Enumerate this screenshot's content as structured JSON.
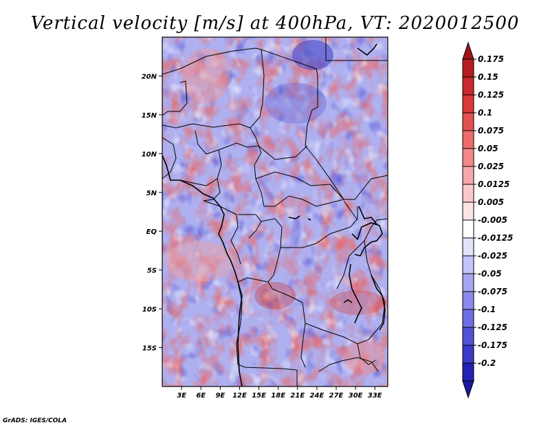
{
  "title": "Vertical velocity [m/s] at 400hPa, VT: 2020012500",
  "credit": "GrADS: IGES/COLA",
  "map": {
    "lon_range": [
      0,
      35
    ],
    "lat_range": [
      -20,
      25
    ],
    "lon_ticks": [
      {
        "value": 3,
        "label": "3E"
      },
      {
        "value": 6,
        "label": "6E"
      },
      {
        "value": 9,
        "label": "9E"
      },
      {
        "value": 12,
        "label": "12E"
      },
      {
        "value": 15,
        "label": "15E"
      },
      {
        "value": 18,
        "label": "18E"
      },
      {
        "value": 21,
        "label": "21E"
      },
      {
        "value": 24,
        "label": "24E"
      },
      {
        "value": 27,
        "label": "27E"
      },
      {
        "value": 30,
        "label": "30E"
      },
      {
        "value": 33,
        "label": "33E"
      }
    ],
    "lat_ticks": [
      {
        "value": 20,
        "label": "20N"
      },
      {
        "value": 15,
        "label": "15N"
      },
      {
        "value": 10,
        "label": "10N"
      },
      {
        "value": 5,
        "label": "5N"
      },
      {
        "value": 0,
        "label": "EQ"
      },
      {
        "value": -5,
        "label": "5S"
      },
      {
        "value": -10,
        "label": "10S"
      },
      {
        "value": -15,
        "label": "15S"
      }
    ]
  },
  "colorbar": {
    "levels": [
      {
        "label": "0.175",
        "color": "#b41c22"
      },
      {
        "label": "0.15",
        "color": "#c8282e"
      },
      {
        "label": "0.125",
        "color": "#d83838"
      },
      {
        "label": "0.1",
        "color": "#e45050"
      },
      {
        "label": "0.075",
        "color": "#ec6c6c"
      },
      {
        "label": "0.05",
        "color": "#f28888"
      },
      {
        "label": "0.025",
        "color": "#f6a8a8"
      },
      {
        "label": "0.0125",
        "color": "#fac8c8"
      },
      {
        "label": "0.005",
        "color": "#fce4e4"
      },
      {
        "label": "-0.005",
        "color": "#ffffff"
      },
      {
        "label": "-0.0125",
        "color": "#e2e2fc"
      },
      {
        "label": "-0.025",
        "color": "#c4c4f8"
      },
      {
        "label": "-0.05",
        "color": "#a6a6f2"
      },
      {
        "label": "-0.075",
        "color": "#8a8aec"
      },
      {
        "label": "-0.1",
        "color": "#6e6ee4"
      },
      {
        "label": "-0.125",
        "color": "#5252d8"
      },
      {
        "label": "-0.175",
        "color": "#3a3ac8"
      },
      {
        "label": "-0.2",
        "color": "#2222b4"
      }
    ],
    "top_color": "#a01418",
    "bottom_color": "#1a1aa0"
  }
}
